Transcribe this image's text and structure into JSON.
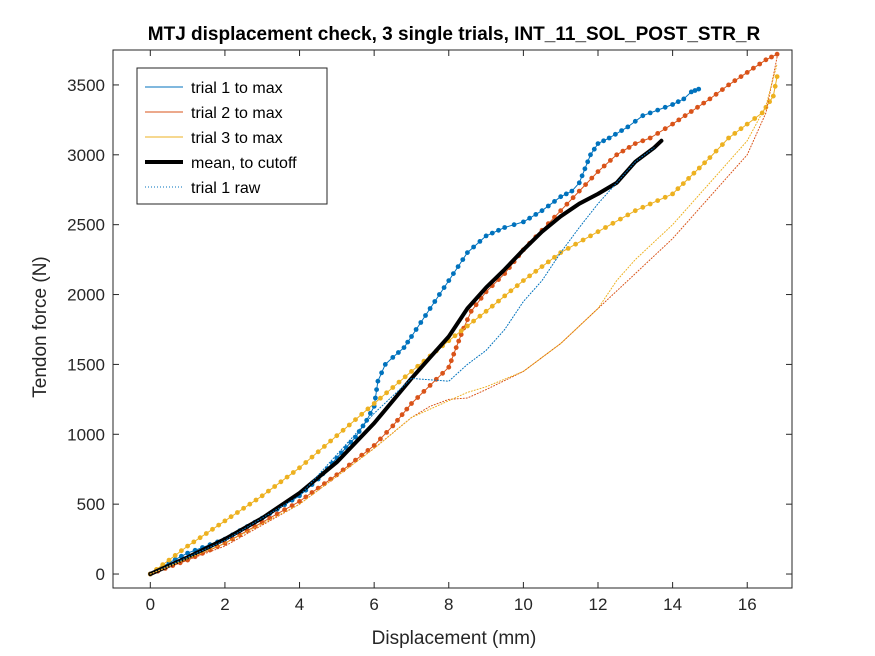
{
  "chart_data": {
    "type": "line",
    "title": "MTJ displacement check, 3 single trials, INT_11_SOL_POST_STR_R",
    "xlabel": "Displacement (mm)",
    "ylabel": "Tendon force (N)",
    "xlim": [
      -1,
      17.2
    ],
    "ylim": [
      -100,
      3750
    ],
    "xticks": [
      "0",
      "2",
      "4",
      "6",
      "8",
      "10",
      "12",
      "14",
      "16"
    ],
    "yticks": [
      "0",
      "500",
      "1000",
      "1500",
      "2000",
      "2500",
      "3000",
      "3500"
    ],
    "grid": false,
    "legend_position": "top-left",
    "legend": [
      {
        "label": "trial 1 to max",
        "color": "#0072BD",
        "style": "thin"
      },
      {
        "label": "trial 2 to max",
        "color": "#D95319",
        "style": "thin"
      },
      {
        "label": "trial 3 to max",
        "color": "#EDB120",
        "style": "thin"
      },
      {
        "label": "mean, to cutoff",
        "color": "#000000",
        "style": "thick"
      },
      {
        "label": "trial 1 raw",
        "color": "#0072BD",
        "style": "dotted"
      }
    ],
    "series": [
      {
        "name": "trial 1 to max",
        "color": "#0072BD",
        "markers": true,
        "x": [
          0,
          0.5,
          1.0,
          2.0,
          3.0,
          4.0,
          4.5,
          5.0,
          5.5,
          5.8,
          6.0,
          6.1,
          6.3,
          6.5,
          6.8,
          7.0,
          7.5,
          8.0,
          8.5,
          9.0,
          9.5,
          10.0,
          10.5,
          11.0,
          11.3,
          11.5,
          11.8,
          12.0,
          12.3,
          12.8,
          13.2,
          13.6,
          14.0,
          14.3,
          14.5,
          14.6,
          14.7
        ],
        "y": [
          0,
          80,
          150,
          250,
          400,
          560,
          680,
          830,
          980,
          1100,
          1200,
          1380,
          1500,
          1550,
          1620,
          1700,
          1900,
          2100,
          2300,
          2420,
          2480,
          2520,
          2600,
          2700,
          2740,
          2800,
          3000,
          3080,
          3120,
          3200,
          3280,
          3320,
          3360,
          3400,
          3450,
          3460,
          3470
        ]
      },
      {
        "name": "trial 2 to max",
        "color": "#D95319",
        "markers": true,
        "x": [
          0,
          1.0,
          2.0,
          3.0,
          4.0,
          5.0,
          6.0,
          6.5,
          7.0,
          7.5,
          8.0,
          8.2,
          8.4,
          8.6,
          9.0,
          9.5,
          10.0,
          10.5,
          11.0,
          11.5,
          12.0,
          12.5,
          13.0,
          13.4,
          14.0,
          14.5,
          15.0,
          15.5,
          16.0,
          16.5,
          16.8
        ],
        "y": [
          0,
          100,
          220,
          370,
          520,
          710,
          920,
          1060,
          1220,
          1350,
          1480,
          1620,
          1760,
          1880,
          2020,
          2150,
          2320,
          2460,
          2600,
          2740,
          2880,
          3000,
          3080,
          3120,
          3220,
          3310,
          3400,
          3500,
          3590,
          3680,
          3720
        ]
      },
      {
        "name": "trial 3 to max",
        "color": "#EDB120",
        "markers": true,
        "x": [
          0,
          1.0,
          2.0,
          3.0,
          4.0,
          5.0,
          6.0,
          7.0,
          8.0,
          9.0,
          10.0,
          11.0,
          12.0,
          13.0,
          14.0,
          15.0,
          15.5,
          16.0,
          16.4,
          16.7,
          16.8
        ],
        "y": [
          0,
          200,
          380,
          560,
          760,
          990,
          1220,
          1450,
          1670,
          1880,
          2100,
          2300,
          2450,
          2600,
          2720,
          2980,
          3120,
          3220,
          3300,
          3420,
          3560
        ]
      },
      {
        "name": "mean, to cutoff",
        "color": "#000000",
        "markers": false,
        "x": [
          0,
          1.0,
          2.0,
          3.0,
          4.0,
          5.0,
          6.0,
          7.0,
          7.5,
          8.0,
          8.5,
          9.0,
          9.5,
          10.0,
          10.5,
          11.0,
          11.5,
          12.0,
          12.5,
          13.0,
          13.5,
          13.7
        ],
        "y": [
          0,
          120,
          250,
          400,
          580,
          800,
          1080,
          1400,
          1550,
          1700,
          1900,
          2050,
          2180,
          2320,
          2450,
          2560,
          2650,
          2720,
          2800,
          2950,
          3050,
          3100
        ]
      },
      {
        "name": "trial 1 raw",
        "color": "#0072BD",
        "markers": false,
        "x": [
          0,
          2.0,
          4.0,
          6.0,
          7.0,
          8.0,
          8.5,
          9.0,
          9.5,
          10.0,
          10.5,
          11.0,
          11.5,
          12.0,
          12.5,
          13.0,
          13.5
        ],
        "y": [
          0,
          240,
          560,
          1150,
          1400,
          1380,
          1500,
          1600,
          1750,
          1950,
          2100,
          2300,
          2480,
          2650,
          2800,
          2950,
          3050
        ]
      },
      {
        "name": "",
        "color": "#D95319",
        "markers": false,
        "dotted": true,
        "x": [
          0,
          2.0,
          4.0,
          6.0,
          7.0,
          7.5,
          8.0,
          8.5,
          9.0,
          10.0,
          11.0,
          12.0,
          13.0,
          14.0,
          15.0,
          16.0,
          16.5,
          16.8
        ],
        "y": [
          0,
          200,
          500,
          900,
          1120,
          1200,
          1250,
          1260,
          1320,
          1450,
          1650,
          1900,
          2150,
          2400,
          2700,
          3000,
          3300,
          3700
        ]
      },
      {
        "name": "",
        "color": "#EDB120",
        "markers": false,
        "dotted": true,
        "x": [
          0,
          2.0,
          4.0,
          6.0,
          7.0,
          8.0,
          8.5,
          9.0,
          10.0,
          11.0,
          12.0,
          12.5,
          13.0,
          14.0,
          15.0,
          16.0,
          16.5,
          16.8
        ],
        "y": [
          0,
          220,
          500,
          900,
          1120,
          1240,
          1300,
          1340,
          1450,
          1650,
          1900,
          2100,
          2250,
          2500,
          2800,
          3100,
          3350,
          3650
        ]
      }
    ]
  }
}
